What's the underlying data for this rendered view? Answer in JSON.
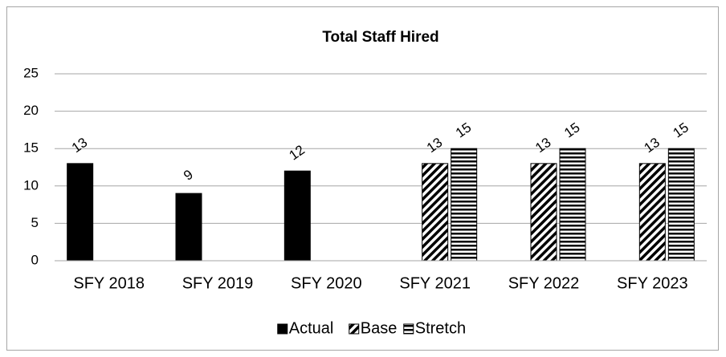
{
  "chart_data": {
    "type": "bar",
    "title": "Total Staff Hired",
    "categories": [
      "SFY 2018",
      "SFY 2019",
      "SFY 2020",
      "SFY 2021",
      "SFY 2022",
      "SFY 2023"
    ],
    "series": [
      {
        "name": "Actual",
        "color": "#000000",
        "pattern": "solid",
        "values": [
          13,
          9,
          12,
          null,
          null,
          null
        ]
      },
      {
        "name": "Base",
        "color": "#000000",
        "pattern": "diagonal",
        "values": [
          null,
          null,
          null,
          13,
          13,
          13
        ]
      },
      {
        "name": "Stretch",
        "color": "#000000",
        "pattern": "horizontal",
        "values": [
          null,
          null,
          null,
          15,
          15,
          15
        ]
      }
    ],
    "ylim": [
      0,
      25
    ],
    "yticks": [
      0,
      5,
      10,
      15,
      20,
      25
    ],
    "grid": true,
    "legend": "bottom"
  }
}
